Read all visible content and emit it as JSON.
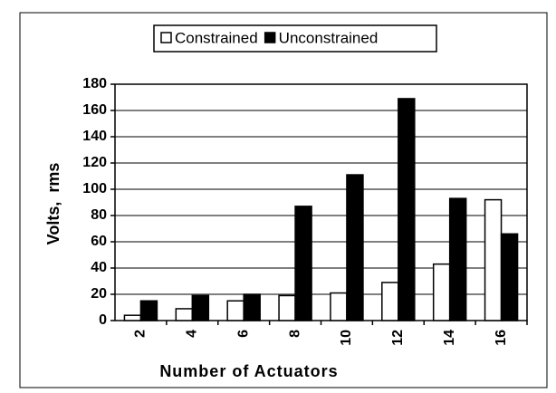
{
  "chart_data": {
    "type": "bar",
    "categories": [
      "2",
      "4",
      "6",
      "8",
      "10",
      "12",
      "14",
      "16"
    ],
    "series": [
      {
        "name": "Constrained",
        "color": "#ffffff",
        "values": [
          4,
          9,
          15,
          19,
          21,
          29,
          43,
          92
        ]
      },
      {
        "name": "Unconstrained",
        "color": "#000000",
        "values": [
          15,
          19,
          20,
          87,
          111,
          169,
          93,
          66
        ]
      }
    ],
    "ylim": [
      0,
      180
    ],
    "yticks": [
      0,
      20,
      40,
      60,
      80,
      100,
      120,
      140,
      160,
      180
    ],
    "xlabel": "Number of Actuators",
    "ylabel": "Volts,  rms",
    "legend": "top"
  }
}
